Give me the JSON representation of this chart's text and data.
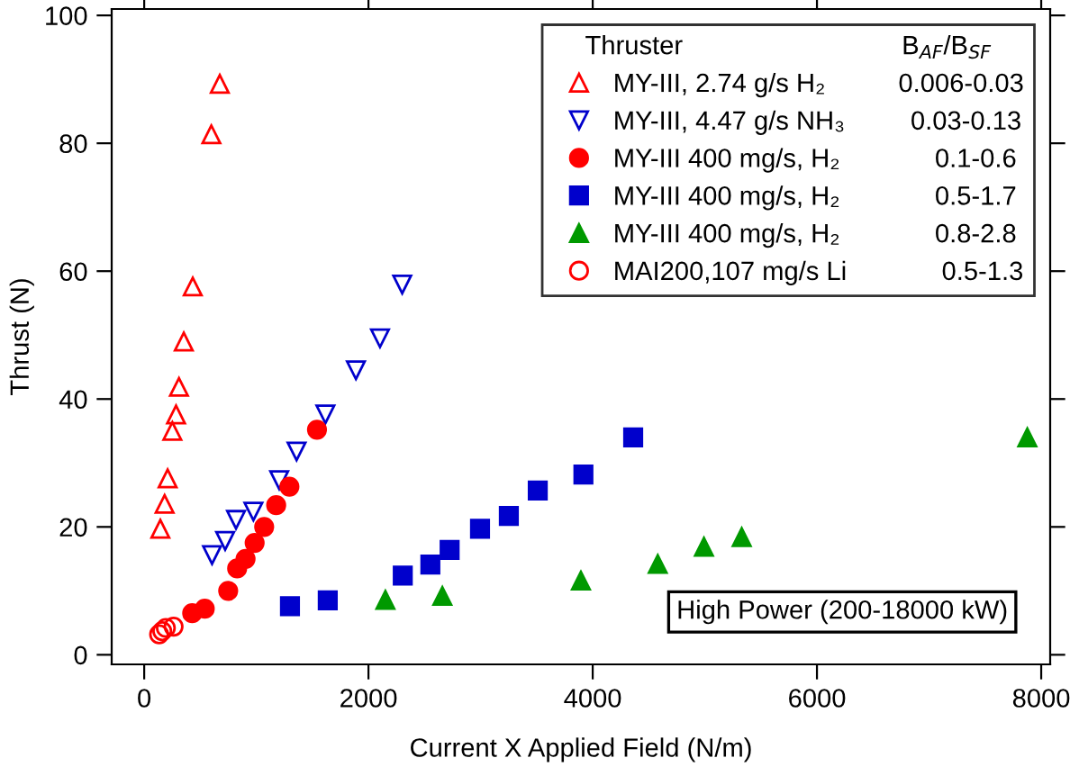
{
  "chart_data": {
    "type": "scatter",
    "xlabel": "Current X Applied Field (N/m)",
    "ylabel": "Thrust (N)",
    "legend_title": "Thruster                              B$_{AF}$/B$_{SF}$",
    "xlim": [
      -290,
      8080
    ],
    "xticks": [
      0,
      2000,
      4000,
      6000,
      8000
    ],
    "ylim": [
      -1.5,
      101
    ],
    "yticks": [
      0,
      20,
      40,
      60,
      80,
      100
    ],
    "grid": false,
    "legend": "top right",
    "annotations": [
      "High Power (200-18000 kW)"
    ],
    "series": [
      {
        "name": "MY-III, 2.74 g/s H₂          0.006-0.03",
        "color": "#ff0000",
        "marker": "triangle-open",
        "x": [
          144,
          182,
          209,
          251,
          284,
          310,
          353,
          433,
          599,
          674
        ],
        "values": [
          19.7,
          23.6,
          27.6,
          35.0,
          37.6,
          41.9,
          49.0,
          57.6,
          81.4,
          89.3
        ]
      },
      {
        "name": "MY-III, 4.47 g/s NH₃         0.03-0.13",
        "color": "#0000cc",
        "marker": "triangle-down-open",
        "x": [
          605,
          722,
          819,
          974,
          1204,
          1359,
          1616,
          1888,
          2103,
          2301
        ],
        "values": [
          15.6,
          17.8,
          21.1,
          22.4,
          27.3,
          31.8,
          37.6,
          44.5,
          49.5,
          57.9
        ]
      },
      {
        "name": "MY-III 400 mg/s, H₂             0.1-0.6",
        "color": "#ff0000",
        "marker": "circle",
        "x": [
          428,
          540,
          749,
          829,
          904,
          985,
          1070,
          1177,
          1295,
          1541
        ],
        "values": [
          6.5,
          7.2,
          10.0,
          13.5,
          15.0,
          17.5,
          20.0,
          23.4,
          26.3,
          35.2
        ]
      },
      {
        "name": "MY-III 400 mg/s, H₂             0.5-1.7",
        "color": "#0000cc",
        "marker": "square",
        "x": [
          1300,
          1637,
          2306,
          2552,
          2724,
          2995,
          3252,
          3510,
          3917,
          4361
        ],
        "values": [
          7.6,
          8.5,
          12.4,
          14.1,
          16.4,
          19.7,
          21.7,
          25.7,
          28.2,
          34.0
        ]
      },
      {
        "name": "MY-III 400 mg/s, H₂             0.8-2.8",
        "color": "#009900",
        "marker": "triangle",
        "x": [
          2151,
          2659,
          3895,
          4580,
          4992,
          5329,
          7876
        ],
        "values": [
          8.6,
          9.2,
          11.6,
          14.2,
          16.9,
          18.4,
          34.0
        ]
      },
      {
        "name": "MAI200,107 mg/s Li             0.5-1.3",
        "color": "#ff0000",
        "marker": "circle-open",
        "x": [
          133,
          161,
          193,
          262
        ],
        "values": [
          3.2,
          3.7,
          4.2,
          4.4
        ]
      }
    ]
  }
}
